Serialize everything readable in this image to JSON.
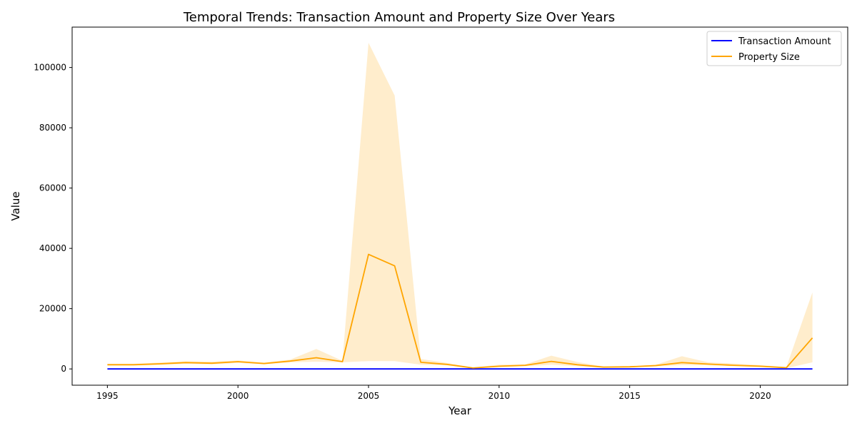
{
  "chart_data": {
    "type": "line",
    "title": "Temporal Trends: Transaction Amount and Property Size Over Years",
    "xlabel": "Year",
    "ylabel": "Value",
    "xlim": [
      1993.65,
      2023.35
    ],
    "ylim": [
      -5400,
      113400
    ],
    "xticks": [
      1995,
      2000,
      2005,
      2010,
      2015,
      2020
    ],
    "yticks": [
      0,
      20000,
      40000,
      60000,
      80000,
      100000
    ],
    "grid": false,
    "legend_position": "top-right",
    "x": [
      1995,
      1996,
      1997,
      1998,
      1999,
      2000,
      2001,
      2002,
      2003,
      2004,
      2005,
      2006,
      2007,
      2008,
      2009,
      2010,
      2011,
      2012,
      2013,
      2014,
      2015,
      2016,
      2017,
      2018,
      2019,
      2020,
      2021,
      2022
    ],
    "series": [
      {
        "name": "Transaction Amount",
        "color": "#0000ff",
        "values": [
          5,
          5,
          5,
          5,
          5,
          5,
          5,
          5,
          5,
          5,
          5,
          5,
          5,
          5,
          5,
          5,
          5,
          5,
          5,
          5,
          5,
          5,
          5,
          5,
          5,
          5,
          5,
          5
        ]
      },
      {
        "name": "Property Size",
        "color": "#ffa500",
        "values": [
          1400,
          1400,
          1700,
          2100,
          1900,
          2400,
          1800,
          2600,
          3700,
          2400,
          38000,
          34200,
          2200,
          1500,
          300,
          900,
          1200,
          2500,
          1400,
          600,
          700,
          1100,
          2100,
          1600,
          1200,
          900,
          400,
          10300
        ],
        "band_lower": [
          1100,
          1100,
          1300,
          1700,
          1500,
          2000,
          1500,
          2200,
          2400,
          2200,
          2600,
          2600,
          1400,
          1200,
          200,
          600,
          900,
          1400,
          900,
          400,
          500,
          800,
          1300,
          1200,
          900,
          700,
          200,
          2200
        ],
        "band_upper": [
          1700,
          1700,
          2100,
          2500,
          2400,
          2800,
          2100,
          3100,
          6600,
          2700,
          108200,
          90700,
          3300,
          2000,
          500,
          1400,
          1500,
          4400,
          2300,
          800,
          900,
          1400,
          4200,
          2200,
          1800,
          1300,
          600,
          25400
        ],
        "band_color": "#ffa500"
      }
    ]
  }
}
